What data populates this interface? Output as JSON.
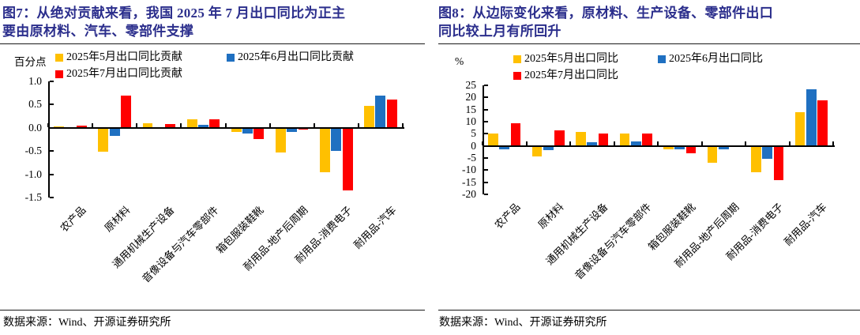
{
  "colors": {
    "title": "#2B2E8C",
    "axis": "#000000",
    "series_may": "#FFC000",
    "series_jun": "#1F70C1",
    "series_jul": "#FF0000"
  },
  "panels": [
    {
      "title_line1": "图7：从绝对贡献来看，我国 2025 年 7 月出口同比为正主",
      "title_line2": "要由原材料、汽车、零部件支撑",
      "unit_label": "百分点",
      "source": "数据来源：Wind、开源证券研究所"
    },
    {
      "title_line1": "图8：从边际变化来看，原材料、生产设备、零部件出口",
      "title_line2": "同比较上月有所回升",
      "unit_label": "%",
      "source": "数据来源：Wind、开源证券研究所"
    }
  ],
  "chart_data": [
    {
      "type": "bar",
      "title": "图7：从绝对贡献来看，我国2025年7月出口同比为正主要由原材料、汽车、零部件支撑",
      "ylabel": "百分点",
      "ylim": [
        -1.5,
        1.0
      ],
      "yticks": [
        1.0,
        0.5,
        0.0,
        -0.5,
        -1.0,
        -1.5
      ],
      "ytick_labels": [
        "1.0",
        "0.5",
        "0.0",
        "-0.5",
        "-1.0",
        "-1.5"
      ],
      "grid": false,
      "legend_position": "top",
      "categories": [
        "农产品",
        "原材料",
        "通用机械生产设备",
        "音像设备与汽车零部件",
        "箱包服装鞋靴",
        "耐用品-地产后周期",
        "耐用品-消费电子",
        "耐用品-汽车"
      ],
      "series": [
        {
          "name": "2025年5月出口同比贡献",
          "color": "#FFC000",
          "values": [
            0.03,
            -0.52,
            0.1,
            0.19,
            -0.08,
            -0.53,
            -0.95,
            0.48
          ]
        },
        {
          "name": "2025年6月出口同比贡献",
          "color": "#1F70C1",
          "values": [
            0.01,
            -0.18,
            0.02,
            0.07,
            -0.12,
            -0.08,
            -0.5,
            0.69
          ]
        },
        {
          "name": "2025年7月出口同比贡献",
          "color": "#FF0000",
          "values": [
            0.05,
            0.7,
            0.08,
            0.18,
            -0.25,
            -0.03,
            -1.35,
            0.61
          ]
        }
      ]
    },
    {
      "type": "bar",
      "title": "图8：从边际变化来看，原材料、生产设备、零部件出口同比较上月有所回升",
      "ylabel": "%",
      "ylim": [
        -20,
        25
      ],
      "yticks": [
        25,
        20,
        15,
        10,
        5,
        0,
        -5,
        -10,
        -15,
        -20
      ],
      "ytick_labels": [
        "25",
        "20",
        "15",
        "10",
        "5",
        "0",
        "-5",
        "-10",
        "-15",
        "-20"
      ],
      "grid": false,
      "legend_position": "top",
      "categories": [
        "农产品",
        "原材料",
        "通用机械生产设备",
        "音像设备与汽车零部件",
        "箱包服装鞋靴",
        "耐用品-地产后周期",
        "耐用品-消费电子",
        "耐用品-汽车"
      ],
      "series": [
        {
          "name": "2025年5月出口同比",
          "color": "#FFC000",
          "values": [
            5.2,
            -4.4,
            5.6,
            5.1,
            -1.4,
            -7.0,
            -10.9,
            14.0
          ]
        },
        {
          "name": "2025年6月出口同比",
          "color": "#1F70C1",
          "values": [
            -1.5,
            -1.6,
            1.4,
            1.9,
            -1.3,
            -1.3,
            -5.3,
            23.5
          ]
        },
        {
          "name": "2025年7月出口同比",
          "color": "#FF0000",
          "values": [
            9.3,
            6.3,
            5.2,
            5.0,
            -3.1,
            -0.4,
            -14.0,
            18.8
          ]
        }
      ]
    }
  ]
}
